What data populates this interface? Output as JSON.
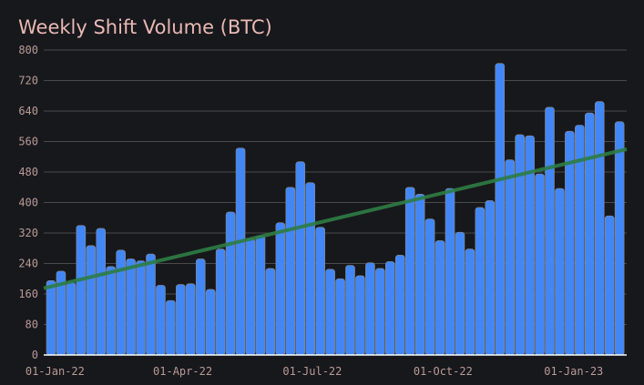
{
  "chart_data": {
    "type": "bar",
    "title": "Weekly Shift Volume (BTC)",
    "xlabel": "",
    "ylabel": "",
    "ylim": [
      0,
      800
    ],
    "yticks": [
      0,
      80,
      160,
      240,
      320,
      400,
      480,
      560,
      640,
      720,
      800
    ],
    "xticks": [
      {
        "label": "01-Jan-22",
        "week": 0.4
      },
      {
        "label": "01-Apr-22",
        "week": 13.2
      },
      {
        "label": "01-Jul-22",
        "week": 26.2
      },
      {
        "label": "01-Oct-22",
        "week": 39.3
      },
      {
        "label": "01-Jan-23",
        "week": 52.4
      }
    ],
    "values": [
      195,
      220,
      190,
      340,
      287,
      332,
      232,
      275,
      252,
      247,
      265,
      183,
      143,
      185,
      187,
      252,
      172,
      278,
      375,
      543,
      305,
      313,
      227,
      347,
      440,
      507,
      452,
      335,
      225,
      200,
      235,
      208,
      242,
      227,
      245,
      262,
      440,
      422,
      357,
      300,
      437,
      322,
      278,
      387,
      405,
      765,
      512,
      578,
      575,
      475,
      650,
      437,
      587,
      603,
      635,
      665,
      365,
      612
    ],
    "trendline": {
      "start": 175,
      "end": 540
    },
    "colors": {
      "bar": "#4287f5",
      "trend": "#2e7d44",
      "grid": "#4a4a4a"
    }
  }
}
